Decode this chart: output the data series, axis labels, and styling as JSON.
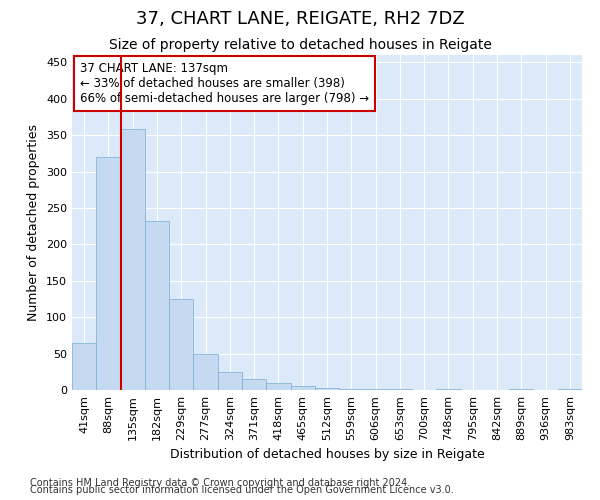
{
  "title1": "37, CHART LANE, REIGATE, RH2 7DZ",
  "title2": "Size of property relative to detached houses in Reigate",
  "xlabel": "Distribution of detached houses by size in Reigate",
  "ylabel": "Number of detached properties",
  "footer1": "Contains HM Land Registry data © Crown copyright and database right 2024.",
  "footer2": "Contains public sector information licensed under the Open Government Licence v3.0.",
  "categories": [
    "41sqm",
    "88sqm",
    "135sqm",
    "182sqm",
    "229sqm",
    "277sqm",
    "324sqm",
    "371sqm",
    "418sqm",
    "465sqm",
    "512sqm",
    "559sqm",
    "606sqm",
    "653sqm",
    "700sqm",
    "748sqm",
    "795sqm",
    "842sqm",
    "889sqm",
    "936sqm",
    "983sqm"
  ],
  "values": [
    65,
    320,
    358,
    232,
    125,
    50,
    25,
    15,
    10,
    5,
    3,
    1,
    1,
    1,
    0,
    1,
    0,
    0,
    1,
    0,
    1
  ],
  "bar_color": "#c5d9f0",
  "bar_edge_color": "#7aadd4",
  "vline_color": "#cc0000",
  "vline_x_index": 2,
  "annotation_text": "37 CHART LANE: 137sqm\n← 33% of detached houses are smaller (398)\n66% of semi-detached houses are larger (798) →",
  "annotation_box_color": "#ffffff",
  "annotation_box_edge_color": "#cc0000",
  "ylim": [
    0,
    460
  ],
  "yticks": [
    0,
    50,
    100,
    150,
    200,
    250,
    300,
    350,
    400,
    450
  ],
  "fig_bg_color": "#ffffff",
  "plot_bg_color": "#dce9f8",
  "grid_color": "#ffffff",
  "title1_fontsize": 13,
  "title2_fontsize": 10,
  "xlabel_fontsize": 9,
  "ylabel_fontsize": 9,
  "tick_fontsize": 8,
  "footer_fontsize": 7
}
